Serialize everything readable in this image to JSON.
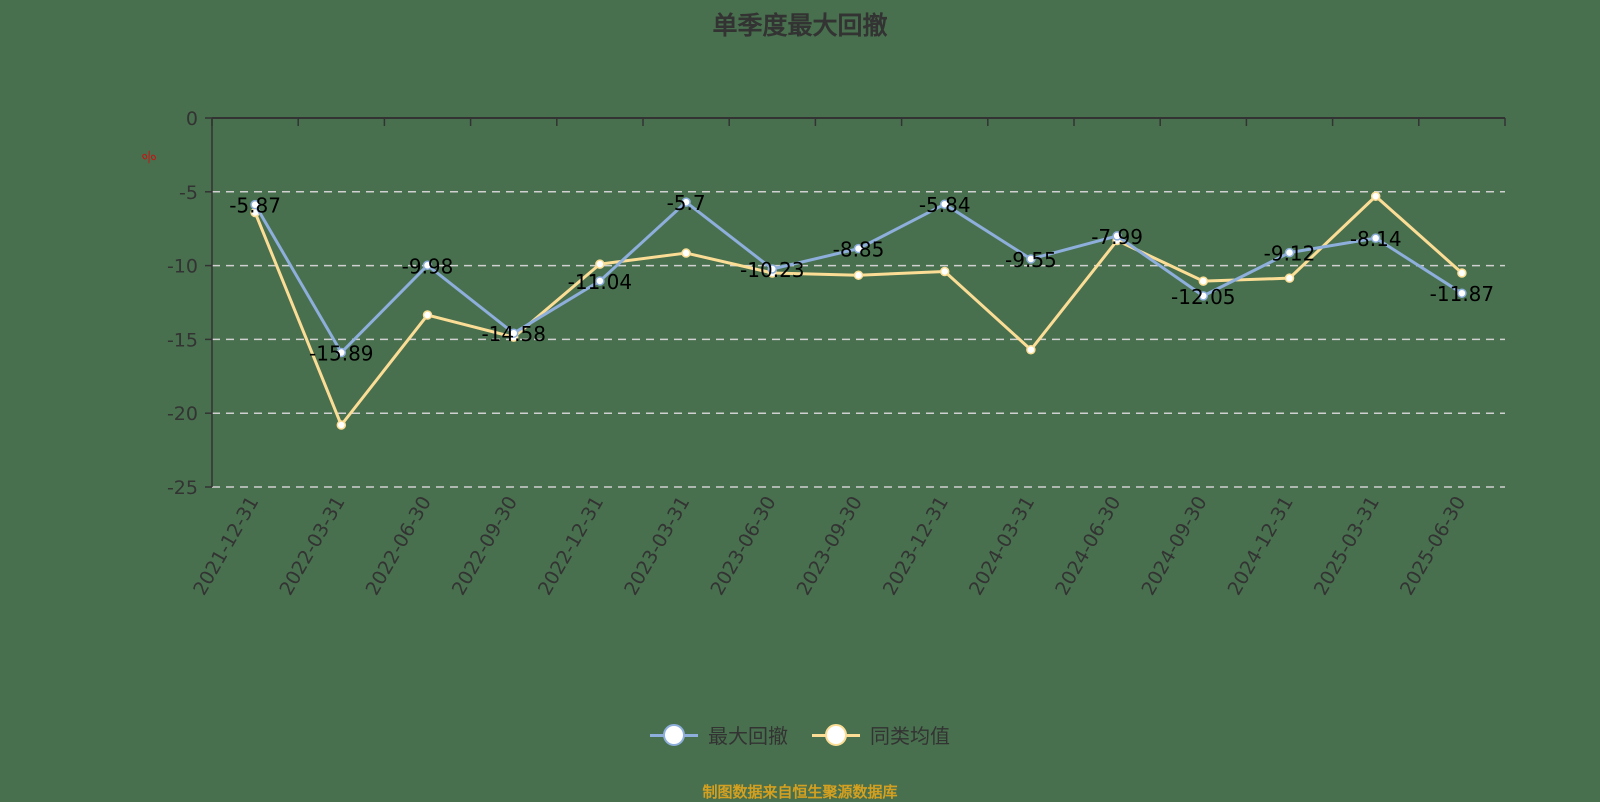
{
  "title": "单季度最大回撤",
  "unit": "%",
  "legend": {
    "items": [
      {
        "label": "最大回撤",
        "color": "#8eaedb"
      },
      {
        "label": "同类均值",
        "color": "#fbdd96"
      }
    ]
  },
  "footer": "制图数据来自恒生聚源数据库",
  "chart_data": {
    "type": "line",
    "title": "单季度最大回撤",
    "xlabel": "",
    "ylabel": "%",
    "ylim": [
      -25,
      0
    ],
    "yticks": [
      0,
      -5,
      -10,
      -15,
      -20,
      -25
    ],
    "grid": true,
    "legend_position": "bottom",
    "categories": [
      "2021-12-31",
      "2022-03-31",
      "2022-06-30",
      "2022-09-30",
      "2022-12-31",
      "2023-03-31",
      "2023-06-30",
      "2023-09-30",
      "2023-12-31",
      "2024-03-31",
      "2024-06-30",
      "2024-09-30",
      "2024-12-31",
      "2025-03-31",
      "2025-06-30"
    ],
    "series": [
      {
        "name": "最大回撤",
        "color": "#8eaedb",
        "labeled": true,
        "values": [
          -5.87,
          -15.89,
          -9.98,
          -14.58,
          -11.04,
          -5.7,
          -10.23,
          -8.85,
          -5.84,
          -9.55,
          -7.99,
          -12.05,
          -9.12,
          -8.14,
          -11.87
        ]
      },
      {
        "name": "同类均值",
        "color": "#fbdd96",
        "labeled": false,
        "values": [
          -6.4,
          -20.8,
          -13.35,
          -14.85,
          -9.9,
          -9.15,
          -10.5,
          -10.65,
          -10.4,
          -15.7,
          -8.3,
          -11.05,
          -10.85,
          -5.3,
          -10.5
        ]
      }
    ]
  }
}
